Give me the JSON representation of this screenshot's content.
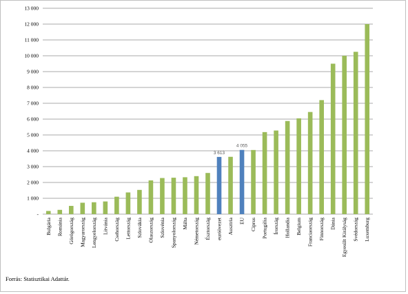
{
  "chart_data": {
    "type": "bar",
    "categories": [
      "Bulgária",
      "Románia",
      "Görögország",
      "Magyarország",
      "Lengyelország",
      "Litvánia",
      "Csehország",
      "Lettország",
      "Szlovákia",
      "Olaszország",
      "Szlovénia",
      "Spanyolország",
      "Málta",
      "Németország",
      "Észtország",
      "euróövezet",
      "Ausztria",
      "EU",
      "Ciprus",
      "Portugália",
      "Írország",
      "Hollandia",
      "Belgium",
      "Franciaország",
      "Finnország",
      "Dánia",
      "Egyesült Királyság",
      "Svédország",
      "Luxemburg"
    ],
    "values": [
      200,
      270,
      520,
      720,
      750,
      800,
      1100,
      1370,
      1530,
      2130,
      2280,
      2300,
      2330,
      2400,
      2600,
      3613,
      3620,
      4055,
      4050,
      5180,
      5280,
      5880,
      6050,
      6450,
      7200,
      9500,
      10000,
      10250,
      12000
    ],
    "highlight": [
      "euróövezet",
      "EU"
    ],
    "data_labels": [
      {
        "category": "euróövezet",
        "text": "3 613"
      },
      {
        "category": "EU",
        "text": "4 055"
      }
    ],
    "yticks": [
      "-",
      "1 000",
      "2 000",
      "3 000",
      "4 000",
      "5 000",
      "6 000",
      "7 000",
      "8 000",
      "9 000",
      "10 000",
      "11 000",
      "12 000",
      "13 000"
    ],
    "ylim": [
      0,
      13000
    ],
    "colors": {
      "default": "#9bbb59",
      "highlight": "#4f81bd",
      "grid": "#8c8c8c"
    },
    "title": "",
    "xlabel": "",
    "ylabel": "",
    "grid": true,
    "legend": "none"
  },
  "source": "Forrás: Statisztikai Adattár."
}
